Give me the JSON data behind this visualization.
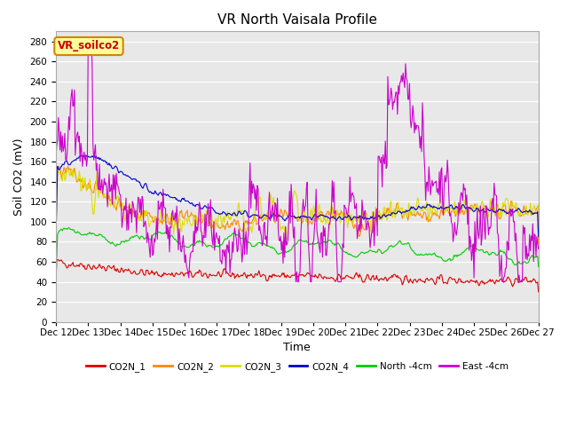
{
  "title": "VR North Vaisala Profile",
  "xlabel": "Time",
  "ylabel": "Soil CO2 (mV)",
  "ylim": [
    0,
    290
  ],
  "yticks": [
    0,
    20,
    40,
    60,
    80,
    100,
    120,
    140,
    160,
    180,
    200,
    220,
    240,
    260,
    280
  ],
  "fig_bg": "#ffffff",
  "plot_bg": "#e8e8e8",
  "annotation_text": "VR_soilco2",
  "annotation_color": "#cc0000",
  "annotation_bg": "#ffff99",
  "annotation_border": "#cc8800",
  "series_colors": {
    "CO2N_1": "#dd0000",
    "CO2N_2": "#ff8800",
    "CO2N_3": "#dddd00",
    "CO2N_4": "#0000cc",
    "North_4cm": "#00cc00",
    "East_4cm": "#cc00cc"
  },
  "legend_labels": [
    "CO2N_1",
    "CO2N_2",
    "CO2N_3",
    "CO2N_4",
    "North -4cm",
    "East -4cm"
  ],
  "grid_color": "#ffffff",
  "title_fontsize": 11,
  "tick_fontsize": 7.5,
  "ylabel_fontsize": 9,
  "xlabel_fontsize": 9
}
